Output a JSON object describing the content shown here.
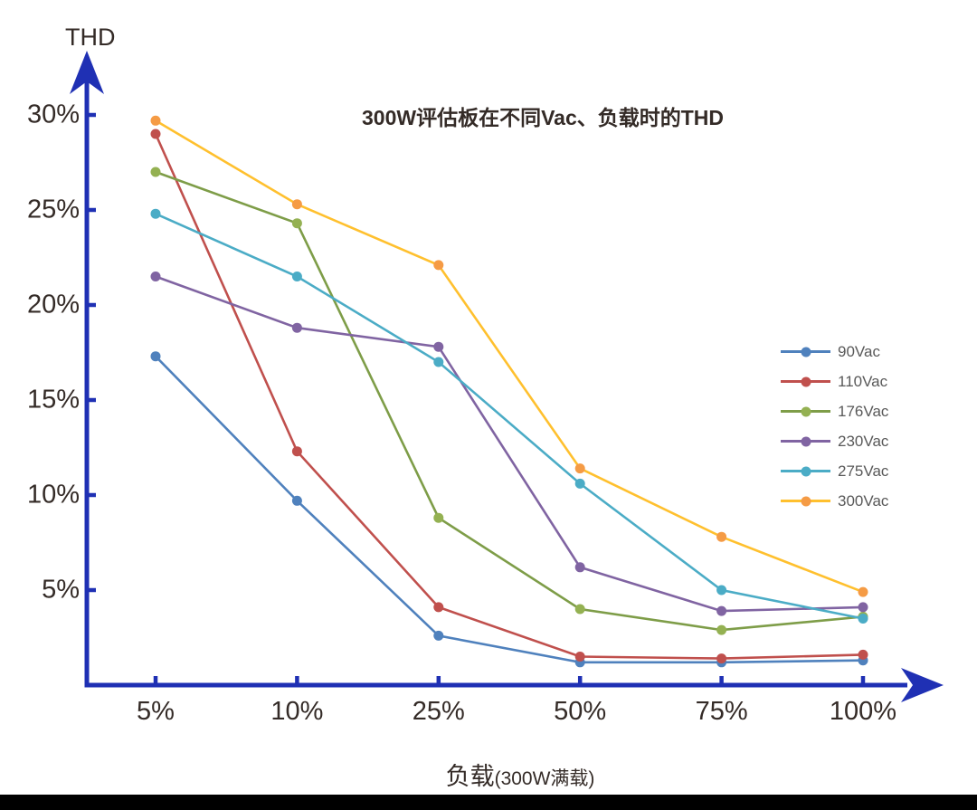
{
  "page": {
    "background_color": "#ffffff",
    "bottom_bar_color": "#000000",
    "text_color": "#342b27",
    "legend_text_color": "#595959"
  },
  "chart_data": {
    "type": "line",
    "title": "300W评估板在不同Vac、负载时的THD",
    "ylabel": "THD",
    "xlabel": "负载(300W满载)",
    "xlabel_main": "负载",
    "xlabel_note": "(300W满载)",
    "categories": [
      "5%",
      "10%",
      "25%",
      "50%",
      "75%",
      "100%"
    ],
    "x_tick_labels": [
      "5%",
      "10%",
      "25%",
      "50%",
      "75%",
      "100%"
    ],
    "y_tick_labels": [
      "30%",
      "25%",
      "20%",
      "15%",
      "10%",
      "5%"
    ],
    "y_tick_values": [
      30,
      25,
      20,
      15,
      10,
      5
    ],
    "ylim": [
      0,
      32
    ],
    "grid": false,
    "axis_color": "#1f30b4",
    "legend_position": "right-middle",
    "series": [
      {
        "name": "90Vac",
        "color": "#4f81bd",
        "marker_color": "#4f81bd",
        "values": [
          17.3,
          9.7,
          2.6,
          1.2,
          1.2,
          1.3
        ]
      },
      {
        "name": "110Vac",
        "color": "#c0504d",
        "marker_color": "#c0504d",
        "values": [
          29.0,
          12.3,
          4.1,
          1.5,
          1.4,
          1.6
        ]
      },
      {
        "name": "176Vac",
        "color": "#7e9d48",
        "marker_color": "#94b152",
        "values": [
          27.0,
          24.3,
          8.8,
          4.0,
          2.9,
          3.6
        ]
      },
      {
        "name": "230Vac",
        "color": "#8064a2",
        "marker_color": "#8064a2",
        "values": [
          21.5,
          18.8,
          17.8,
          6.2,
          3.9,
          4.1
        ]
      },
      {
        "name": "275Vac",
        "color": "#4bacc6",
        "marker_color": "#4bacc6",
        "values": [
          24.8,
          21.5,
          17.0,
          10.6,
          5.0,
          3.5
        ]
      },
      {
        "name": "300Vac",
        "color": "#ffc02e",
        "marker_color": "#f59b45",
        "values": [
          29.7,
          25.3,
          22.1,
          11.4,
          7.8,
          4.9
        ]
      }
    ]
  }
}
